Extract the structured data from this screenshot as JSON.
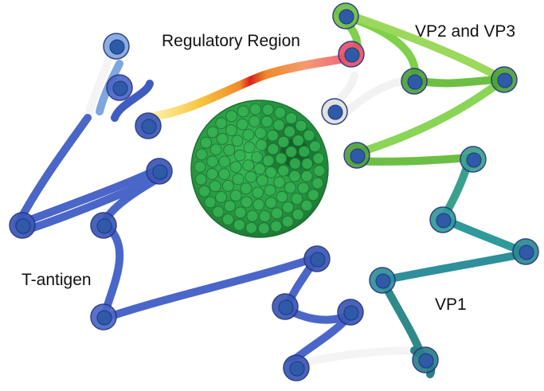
{
  "labels": {
    "regulatory_region": "Regulatory Region",
    "vp2_vp3": "VP2 and VP3",
    "t_antigen": "T-antigen",
    "vp1": "VP1"
  },
  "colors": {
    "t_antigen": "#4a66c8",
    "t_antigen_dark": "#2d46a0",
    "t_antigen_light": "#7fa6e0",
    "regulatory": [
      "#ffe38a",
      "#f7b83a",
      "#f08a2a",
      "#e0301e",
      "#f06060",
      "#f08aa0"
    ],
    "vp2_vp3": "#8fd45a",
    "vp2_vp3_dark": "#4da03a",
    "vp1": "#2f9a9a",
    "vp1_dark": "#1f7a80",
    "unlabeled_dna": "#f2f2f2",
    "capsid": "#2fa84a",
    "nucleosome": "#3f6cc0"
  }
}
